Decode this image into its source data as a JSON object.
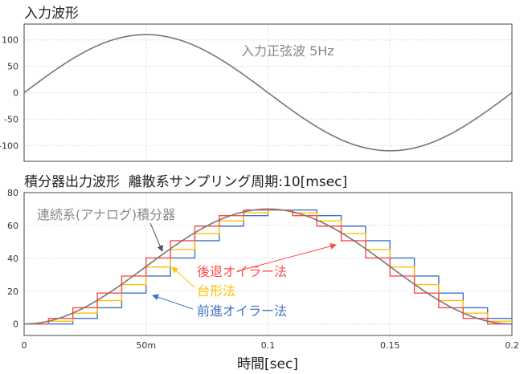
{
  "chart_data": [
    {
      "type": "line",
      "title": "入力波形",
      "annotation": "入力正弦波 5Hz",
      "amplitude": 110,
      "frequency_hz": 5,
      "xlim": [
        0,
        0.2
      ],
      "ylim": [
        -130,
        130
      ],
      "yticks": [
        100,
        50,
        0,
        -50,
        -100
      ],
      "ytick_labels": [
        "100",
        "50",
        "0",
        "-50",
        "-100"
      ],
      "grid": true,
      "color": "#777777"
    },
    {
      "type": "line",
      "title": "積分器出力波形  離散系サンプリング周期:10[msec]",
      "xlabel": "時間[sec]",
      "xlim": [
        0,
        0.2
      ],
      "ylim": [
        -7,
        80
      ],
      "xticks": [
        0,
        0.05,
        0.1,
        0.15,
        0.2
      ],
      "xtick_labels": [
        "0",
        "50m",
        "0.1",
        "0.15",
        "0.2"
      ],
      "yticks": [
        0,
        20,
        40,
        60,
        80
      ],
      "ytick_labels": [
        "0",
        "20",
        "40",
        "60",
        "80"
      ],
      "grid": true,
      "sample_period": 0.01,
      "continuous_peak": 70,
      "series": [
        {
          "name": "連続系(アナログ)積分器",
          "color": "#777777",
          "kind": "continuous"
        },
        {
          "name": "前進オイラー法",
          "color": "#4472c4",
          "kind": "step",
          "values": [
            0,
            0,
            3.4,
            9.9,
            18.8,
            29.2,
            40.2,
            50.7,
            59.6,
            66.0,
            69.4,
            69.4,
            66.0,
            59.6,
            50.7,
            40.2,
            29.2,
            18.8,
            9.9,
            3.4
          ]
        },
        {
          "name": "台形法",
          "color": "#ffc000",
          "kind": "step",
          "values": [
            0,
            1.7,
            6.6,
            14.3,
            24.0,
            34.7,
            45.4,
            55.1,
            62.8,
            67.7,
            69.4,
            67.7,
            62.8,
            55.1,
            45.4,
            34.7,
            24.0,
            14.3,
            6.6,
            1.7
          ]
        },
        {
          "name": "後退オイラー法",
          "color": "#ff4b4b",
          "kind": "step",
          "values": [
            0,
            3.4,
            9.9,
            18.8,
            29.2,
            40.2,
            50.7,
            59.6,
            66.0,
            69.4,
            69.4,
            66.0,
            59.6,
            50.7,
            40.2,
            29.2,
            18.8,
            9.9,
            3.4,
            0
          ]
        }
      ]
    }
  ]
}
